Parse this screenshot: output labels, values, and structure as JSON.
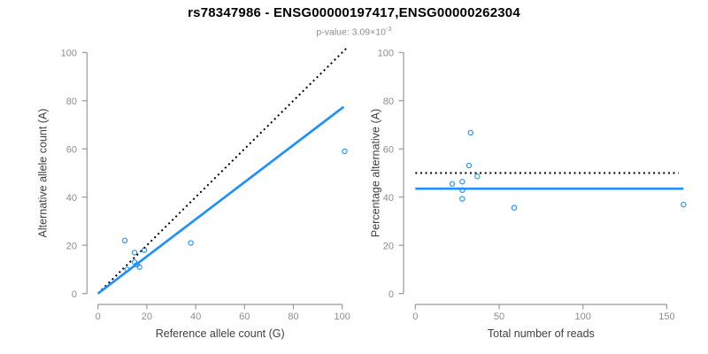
{
  "figure": {
    "title": "rs78347986 - ENSG00000197417,ENSG00000262304",
    "subtitle_base": "p-value: 3.09×10",
    "subtitle_exponent": "-3"
  },
  "colors": {
    "accent_blue": "#1E90FF",
    "reference_black": "#000000",
    "axis": "#999999",
    "tick_label": "#8c8c8c",
    "axis_title": "#404040",
    "title": "#000000",
    "subtitle": "#8c8c8c"
  },
  "chart_data": [
    {
      "id": "allele-counts",
      "type": "scatter",
      "xlabel": "Reference allele count (G)",
      "ylabel": "Alternative allele count (A)",
      "xlim": [
        0,
        104
      ],
      "ylim": [
        0,
        104
      ],
      "xticks": [
        0,
        20,
        40,
        60,
        80,
        100
      ],
      "yticks": [
        0,
        20,
        40,
        60,
        80,
        100
      ],
      "marker": "open-circle",
      "grid": false,
      "points": [
        [
          11,
          22
        ],
        [
          15,
          17
        ],
        [
          19,
          18
        ],
        [
          12,
          10
        ],
        [
          15,
          13
        ],
        [
          16,
          12
        ],
        [
          17,
          11
        ],
        [
          38,
          21
        ],
        [
          101,
          59
        ]
      ],
      "lines": [
        {
          "name": "identity-line",
          "style": "dotted",
          "color": "#000000",
          "slope": 1,
          "intercept": 0,
          "x1": 0,
          "x2": 102
        },
        {
          "name": "fit-line",
          "style": "solid",
          "color": "#1E90FF",
          "slope": 0.77,
          "intercept": 0,
          "x1": 0,
          "x2": 100.6
        }
      ]
    },
    {
      "id": "percentage-vs-reads",
      "type": "scatter",
      "xlabel": "Total number of reads",
      "ylabel": "Percentage alternative (A)",
      "xlim": [
        0,
        167
      ],
      "ylim": [
        0,
        104
      ],
      "xticks": [
        0,
        50,
        100,
        150
      ],
      "yticks": [
        0,
        20,
        40,
        60,
        80,
        100
      ],
      "marker": "open-circle",
      "grid": false,
      "points": [
        [
          33,
          66.7
        ],
        [
          32,
          53.1
        ],
        [
          37,
          48.6
        ],
        [
          22,
          45.5
        ],
        [
          28,
          46.4
        ],
        [
          28,
          42.9
        ],
        [
          28,
          39.3
        ],
        [
          59,
          35.6
        ],
        [
          160,
          36.9
        ]
      ],
      "lines": [
        {
          "name": "expected-50pct-line",
          "style": "dotted",
          "color": "#000000",
          "value": 50,
          "x1": 0,
          "x2": 157
        },
        {
          "name": "fit-line",
          "style": "solid",
          "color": "#1E90FF",
          "value": 43.5,
          "x1": 0,
          "x2": 160
        }
      ]
    }
  ]
}
